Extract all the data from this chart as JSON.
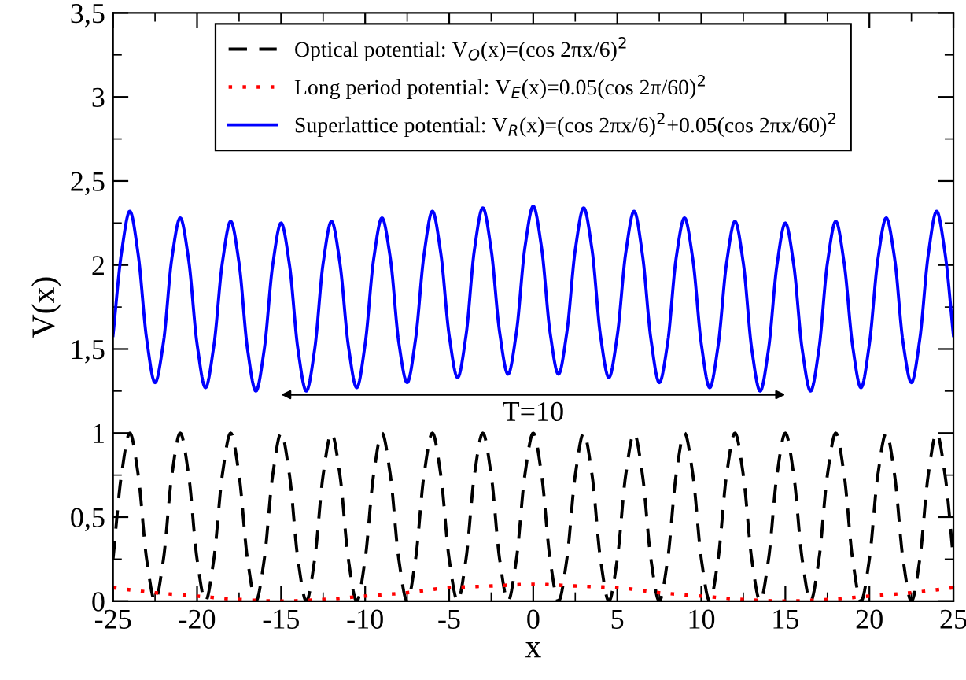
{
  "chart_data": {
    "type": "line",
    "xlabel": "x",
    "ylabel": "V(x)",
    "xlim": [
      -25,
      25
    ],
    "xticks": [
      -25,
      -20,
      -15,
      -10,
      -5,
      0,
      5,
      10,
      15,
      20,
      25
    ],
    "ylim": [
      0,
      3.5
    ],
    "yticks": [
      0,
      {
        "value": 0.5,
        "label": "0,5"
      },
      1,
      {
        "value": 1.5,
        "label": "1,5"
      },
      2,
      {
        "value": 2.5,
        "label": "2,5"
      },
      3,
      {
        "value": 3.5,
        "label": "3,5"
      }
    ],
    "grid": false,
    "legend": "top",
    "x": [
      -25,
      -24.5,
      -24,
      -23.5,
      -23,
      -22.5,
      -22,
      -21.5,
      -21,
      -20.5,
      -20,
      -19.5,
      -19,
      -18.5,
      -18,
      -17.5,
      -17,
      -16.5,
      -16,
      -15.5,
      -15,
      -14.5,
      -14,
      -13.5,
      -13,
      -12.5,
      -12,
      -11.5,
      -11,
      -10.5,
      -10,
      -9.5,
      -9,
      -8.5,
      -8,
      -7.5,
      -7,
      -6.5,
      -6,
      -5.5,
      -5,
      -4.5,
      -4,
      -3.5,
      -3,
      -2.5,
      -2,
      -1.5,
      -1,
      -0.5,
      0,
      0.5,
      1,
      1.5,
      2,
      2.5,
      3,
      3.5,
      4,
      4.5,
      5,
      5.5,
      6,
      6.5,
      7,
      7.5,
      8,
      8.5,
      9,
      9.5,
      10,
      10.5,
      11,
      11.5,
      12,
      12.5,
      13,
      13.5,
      14,
      14.5,
      15,
      15.5,
      16,
      16.5,
      17,
      17.5,
      18,
      18.5,
      19,
      19.5,
      20,
      20.5,
      21,
      21.5,
      22,
      22.5,
      23,
      23.5,
      24,
      24.5,
      25
    ],
    "series": [
      {
        "name": "Optical potential: V$_{O}$(x)=(cos 2πx/6)$^{2}$",
        "color": "#000000",
        "line_style": "dashed",
        "values": [
          0.25,
          0.75,
          1,
          0.75,
          0.25,
          0,
          0.25,
          0.75,
          1,
          0.75,
          0.25,
          0,
          0.25,
          0.75,
          1,
          0.75,
          0.25,
          0,
          0.25,
          0.75,
          1,
          0.75,
          0.25,
          0,
          0.25,
          0.75,
          1,
          0.75,
          0.25,
          0,
          0.25,
          0.75,
          1,
          0.75,
          0.25,
          0,
          0.25,
          0.75,
          1,
          0.75,
          0.25,
          0,
          0.25,
          0.75,
          1,
          0.75,
          0.25,
          0,
          0.25,
          0.75,
          1,
          0.75,
          0.25,
          0,
          0.25,
          0.75,
          1,
          0.75,
          0.25,
          0,
          0.25,
          0.75,
          1,
          0.75,
          0.25,
          0,
          0.25,
          0.75,
          1,
          0.75,
          0.25,
          0,
          0.25,
          0.75,
          1,
          0.75,
          0.25,
          0,
          0.25,
          0.75,
          1,
          0.75,
          0.25,
          0,
          0.25,
          0.75,
          1,
          0.75,
          0.25,
          0,
          0.25,
          0.75,
          1,
          0.75,
          0.25,
          0,
          0.25,
          0.75,
          1,
          0.75,
          0.25
        ]
      },
      {
        "name": "Long period potential: V$_{E}$(x)=0.05(cos 2π/60)$^{2}$",
        "color": "#ff0000",
        "line_style": "dotted",
        "x": [
          -25,
          -22.5,
          -20,
          -17.5,
          -15,
          -12.5,
          -10,
          -7.5,
          -5,
          -2.5,
          0,
          2.5,
          5,
          7.5,
          10,
          12.5,
          15,
          17.5,
          20,
          22.5,
          25
        ],
        "values": [
          0.08,
          0.05,
          0.03,
          0.01,
          0,
          0.01,
          0.03,
          0.05,
          0.08,
          0.09,
          0.1,
          0.09,
          0.08,
          0.05,
          0.03,
          0.01,
          0,
          0.01,
          0.03,
          0.05,
          0.08
        ]
      },
      {
        "name": "Superlattice potential: V$_{R}$(x)=(cos 2πx/6)$^{2}$+0.05(cos 2πx/60)$^{2}$",
        "color": "#0000ff",
        "line_style": "solid",
        "values": [
          1.58,
          2.07,
          2.32,
          2.06,
          1.56,
          1.3,
          1.54,
          2.04,
          2.28,
          2.03,
          1.53,
          1.27,
          1.52,
          2.01,
          2.26,
          2.01,
          1.5,
          1.25,
          1.5,
          2.0,
          2.25,
          2.0,
          1.5,
          1.25,
          1.5,
          2.01,
          2.26,
          2.01,
          1.52,
          1.27,
          1.53,
          2.03,
          2.28,
          2.04,
          1.54,
          1.3,
          1.56,
          2.06,
          2.32,
          2.07,
          1.58,
          1.33,
          1.58,
          2.09,
          2.34,
          2.09,
          1.6,
          1.35,
          1.6,
          2.1,
          2.35,
          2.1,
          1.6,
          1.35,
          1.6,
          2.09,
          2.34,
          2.09,
          1.58,
          1.33,
          1.58,
          2.07,
          2.32,
          2.06,
          1.56,
          1.3,
          1.54,
          2.04,
          2.28,
          2.03,
          1.53,
          1.27,
          1.52,
          2.01,
          2.26,
          2.01,
          1.5,
          1.25,
          1.5,
          2.0,
          2.25,
          2.0,
          1.5,
          1.25,
          1.5,
          2.01,
          2.26,
          2.01,
          1.52,
          1.27,
          1.53,
          2.03,
          2.28,
          2.04,
          1.54,
          1.3,
          1.56,
          2.06,
          2.32,
          2.07,
          1.58
        ]
      }
    ],
    "annotations": [
      "T=10"
    ]
  }
}
